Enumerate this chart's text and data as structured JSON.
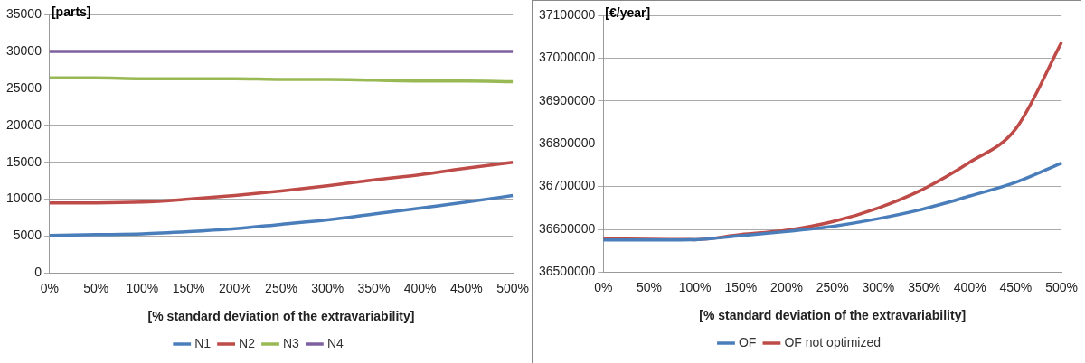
{
  "chart_data": [
    {
      "type": "line",
      "ylabel": "[parts]",
      "xlabel": "[% standard deviation of the extravariability]",
      "categories": [
        "0%",
        "50%",
        "100%",
        "150%",
        "200%",
        "250%",
        "300%",
        "350%",
        "400%",
        "450%",
        "500%"
      ],
      "series": [
        {
          "name": "N1",
          "color": "#4a7ebb",
          "values": [
            5100,
            5200,
            5300,
            5600,
            6000,
            6600,
            7200,
            8000,
            8800,
            9600,
            10500
          ]
        },
        {
          "name": "N2",
          "color": "#be4b48",
          "values": [
            9500,
            9500,
            9600,
            10000,
            10500,
            11100,
            11800,
            12600,
            13300,
            14200,
            15000
          ]
        },
        {
          "name": "N3",
          "color": "#98b954",
          "values": [
            26400,
            26400,
            26300,
            26300,
            26300,
            26200,
            26200,
            26100,
            26000,
            26000,
            25900
          ]
        },
        {
          "name": "N4",
          "color": "#7d60a0",
          "values": [
            30000,
            30000,
            30000,
            30000,
            30000,
            30000,
            30000,
            30000,
            30000,
            30000,
            30000
          ]
        }
      ],
      "ylim": [
        0,
        35000
      ],
      "yticks": [
        0,
        5000,
        10000,
        15000,
        20000,
        25000,
        30000,
        35000
      ],
      "grid": "y",
      "legend": "bottom",
      "marker": "none",
      "line_style": "solid"
    },
    {
      "type": "line",
      "ylabel": "[€/year]",
      "xlabel": "[% standard deviation of the extravariability]",
      "categories": [
        "0%",
        "50%",
        "100%",
        "150%",
        "200%",
        "250%",
        "300%",
        "350%",
        "400%",
        "450%",
        "500%"
      ],
      "series": [
        {
          "name": "OF",
          "color": "#4a7ebb",
          "values": [
            36575000,
            36575000,
            36576000,
            36585000,
            36595000,
            36607000,
            36625000,
            36648000,
            36678000,
            36710000,
            36755000
          ]
        },
        {
          "name": "OF not optimized",
          "color": "#be4b48",
          "values": [
            36578000,
            36577000,
            36576000,
            36588000,
            36598000,
            36618000,
            36650000,
            36695000,
            36757000,
            36835000,
            37037000
          ]
        }
      ],
      "ylim": [
        36500000,
        37100000
      ],
      "yticks": [
        36500000,
        36600000,
        36700000,
        36800000,
        36900000,
        37000000,
        37100000
      ],
      "grid": "y",
      "legend": "bottom",
      "marker": "none",
      "line_style": "solid"
    }
  ]
}
